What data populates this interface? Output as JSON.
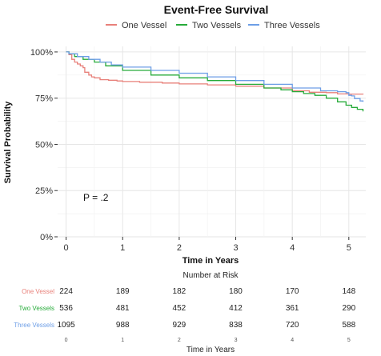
{
  "chart_data": [
    {
      "type": "line",
      "title": "Event-Free Survival",
      "xlabel": "Time in Years",
      "ylabel": "Survival Probability",
      "xlim": [
        -0.15,
        5.3
      ],
      "ylim": [
        0,
        1.03
      ],
      "x_ticks": [
        "0",
        "1",
        "2",
        "3",
        "4",
        "5"
      ],
      "y_ticks": [
        "0%",
        "25%",
        "50%",
        "75%",
        "100%"
      ],
      "y_tick_values": [
        0,
        0.25,
        0.5,
        0.75,
        1.0
      ],
      "grid": true,
      "legend_position": "top",
      "annotation": "P = .2",
      "series": [
        {
          "name": "One Vessel",
          "color": "#e8807a",
          "points": [
            [
              0,
              1.0
            ],
            [
              0.05,
              0.985
            ],
            [
              0.1,
              0.96
            ],
            [
              0.15,
              0.945
            ],
            [
              0.2,
              0.935
            ],
            [
              0.25,
              0.925
            ],
            [
              0.3,
              0.915
            ],
            [
              0.33,
              0.89
            ],
            [
              0.4,
              0.875
            ],
            [
              0.45,
              0.865
            ],
            [
              0.5,
              0.86
            ],
            [
              0.6,
              0.85
            ],
            [
              0.75,
              0.847
            ],
            [
              0.9,
              0.843
            ],
            [
              1.0,
              0.84
            ],
            [
              1.3,
              0.836
            ],
            [
              1.7,
              0.832
            ],
            [
              2.0,
              0.827
            ],
            [
              2.5,
              0.822
            ],
            [
              3.0,
              0.815
            ],
            [
              3.5,
              0.805
            ],
            [
              4.0,
              0.79
            ],
            [
              4.3,
              0.782
            ],
            [
              4.6,
              0.78
            ],
            [
              4.8,
              0.773
            ],
            [
              5.0,
              0.772
            ],
            [
              5.25,
              0.77
            ]
          ]
        },
        {
          "name": "Two Vessels",
          "color": "#27ab3a",
          "points": [
            [
              0,
              1.0
            ],
            [
              0.05,
              0.99
            ],
            [
              0.15,
              0.975
            ],
            [
              0.3,
              0.96
            ],
            [
              0.5,
              0.945
            ],
            [
              0.7,
              0.925
            ],
            [
              1.0,
              0.9
            ],
            [
              1.5,
              0.875
            ],
            [
              2.0,
              0.86
            ],
            [
              2.5,
              0.845
            ],
            [
              3.0,
              0.825
            ],
            [
              3.5,
              0.805
            ],
            [
              3.8,
              0.795
            ],
            [
              4.0,
              0.785
            ],
            [
              4.2,
              0.775
            ],
            [
              4.4,
              0.765
            ],
            [
              4.6,
              0.75
            ],
            [
              4.8,
              0.73
            ],
            [
              4.95,
              0.712
            ],
            [
              5.05,
              0.7
            ],
            [
              5.15,
              0.69
            ],
            [
              5.25,
              0.678
            ]
          ]
        },
        {
          "name": "Three Vessels",
          "color": "#6d9ee6",
          "points": [
            [
              0,
              1.0
            ],
            [
              0.05,
              0.99
            ],
            [
              0.2,
              0.975
            ],
            [
              0.4,
              0.96
            ],
            [
              0.6,
              0.945
            ],
            [
              0.8,
              0.93
            ],
            [
              1.0,
              0.918
            ],
            [
              1.5,
              0.9
            ],
            [
              2.0,
              0.885
            ],
            [
              2.5,
              0.865
            ],
            [
              3.0,
              0.845
            ],
            [
              3.5,
              0.825
            ],
            [
              4.0,
              0.805
            ],
            [
              4.5,
              0.79
            ],
            [
              4.8,
              0.785
            ],
            [
              4.95,
              0.78
            ],
            [
              5.0,
              0.765
            ],
            [
              5.05,
              0.762
            ],
            [
              5.1,
              0.748
            ],
            [
              5.2,
              0.735
            ],
            [
              5.25,
              0.73
            ]
          ]
        }
      ]
    },
    {
      "type": "table",
      "title": "Number at Risk",
      "xlabel": "Time in Years",
      "x_ticks": [
        "0",
        "1",
        "2",
        "3",
        "4",
        "5"
      ],
      "rows": [
        {
          "name": "One Vessel",
          "color": "#e8807a",
          "values": [
            "224",
            "189",
            "182",
            "180",
            "170",
            "148"
          ]
        },
        {
          "name": "Two Vessels",
          "color": "#27ab3a",
          "values": [
            "536",
            "481",
            "452",
            "412",
            "361",
            "290"
          ]
        },
        {
          "name": "Three Vessels",
          "color": "#6d9ee6",
          "values": [
            "1095",
            "988",
            "929",
            "838",
            "720",
            "588"
          ]
        }
      ]
    }
  ]
}
